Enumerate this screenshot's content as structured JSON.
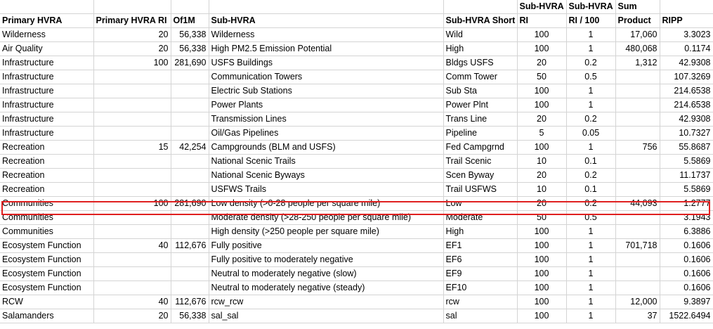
{
  "headers": {
    "top": [
      "",
      "",
      "",
      "",
      "",
      "Sub-HVRA",
      "Sub-HVRA",
      "Sum",
      ""
    ],
    "bottom": [
      "Primary HVRA",
      "Primary HVRA RI",
      "Of1M",
      "Sub-HVRA",
      "Sub-HVRA Short",
      "RI",
      "RI / 100",
      "Product",
      "RIPP"
    ]
  },
  "rows": [
    [
      "Wilderness",
      "20",
      "56,338",
      "Wilderness",
      "Wild",
      "100",
      "1",
      "17,060",
      "3.3023"
    ],
    [
      "Air Quality",
      "20",
      "56,338",
      "High PM2.5 Emission Potential",
      "High",
      "100",
      "1",
      "480,068",
      "0.1174"
    ],
    [
      "Infrastructure",
      "100",
      "281,690",
      "USFS Buildings",
      "Bldgs USFS",
      "20",
      "0.2",
      "1,312",
      "42.9308"
    ],
    [
      "Infrastructure",
      "",
      "",
      "Communication Towers",
      "Comm Tower",
      "50",
      "0.5",
      "",
      "107.3269"
    ],
    [
      "Infrastructure",
      "",
      "",
      "Electric Sub Stations",
      "Sub Sta",
      "100",
      "1",
      "",
      "214.6538"
    ],
    [
      "Infrastructure",
      "",
      "",
      "Power Plants",
      "Power Plnt",
      "100",
      "1",
      "",
      "214.6538"
    ],
    [
      "Infrastructure",
      "",
      "",
      "Transmission Lines",
      "Trans Line",
      "20",
      "0.2",
      "",
      "42.9308"
    ],
    [
      "Infrastructure",
      "",
      "",
      "Oil/Gas Pipelines",
      "Pipeline",
      "5",
      "0.05",
      "",
      "10.7327"
    ],
    [
      "Recreation",
      "15",
      "42,254",
      "Campgrounds (BLM and USFS)",
      "Fed Campgrnd",
      "100",
      "1",
      "756",
      "55.8687"
    ],
    [
      "Recreation",
      "",
      "",
      "National Scenic Trails",
      "Trail Scenic",
      "10",
      "0.1",
      "",
      "5.5869"
    ],
    [
      "Recreation",
      "",
      "",
      "National Scenic Byways",
      "Scen Byway",
      "20",
      "0.2",
      "",
      "11.1737"
    ],
    [
      "Recreation",
      "",
      "",
      "USFWS Trails",
      "Trail USFWS",
      "10",
      "0.1",
      "",
      "5.5869"
    ],
    [
      "Communities",
      "100",
      "281,690",
      "Low density (>0-28 people per square mile)",
      "Low",
      "20",
      "0.2",
      "44,093",
      "1.2777"
    ],
    [
      "Communities",
      "",
      "",
      "Moderate density (>28-250 people per square mile)",
      "Moderate",
      "50",
      "0.5",
      "",
      "3.1943"
    ],
    [
      "Communities",
      "",
      "",
      "High density (>250 people per square mile)",
      "High",
      "100",
      "1",
      "",
      "6.3886"
    ],
    [
      "Ecosystem Function",
      "40",
      "112,676",
      "Fully positive",
      "EF1",
      "100",
      "1",
      "701,718",
      "0.1606"
    ],
    [
      "Ecosystem Function",
      "",
      "",
      "Fully positive to moderately negative",
      "EF6",
      "100",
      "1",
      "",
      "0.1606"
    ],
    [
      "Ecosystem Function",
      "",
      "",
      "Neutral to moderately negative (slow)",
      "EF9",
      "100",
      "1",
      "",
      "0.1606"
    ],
    [
      "Ecosystem Function",
      "",
      "",
      "Neutral to moderately negative (steady)",
      "EF10",
      "100",
      "1",
      "",
      "0.1606"
    ],
    [
      "RCW",
      "40",
      "112,676",
      "rcw_rcw",
      "rcw",
      "100",
      "1",
      "12,000",
      "9.3897"
    ],
    [
      "Salamanders",
      "20",
      "56,338",
      "sal_sal",
      "sal",
      "100",
      "1",
      "37",
      "1522.6494"
    ]
  ],
  "highlight_color": "#e02020",
  "gridline_color": "#d4d4d4"
}
